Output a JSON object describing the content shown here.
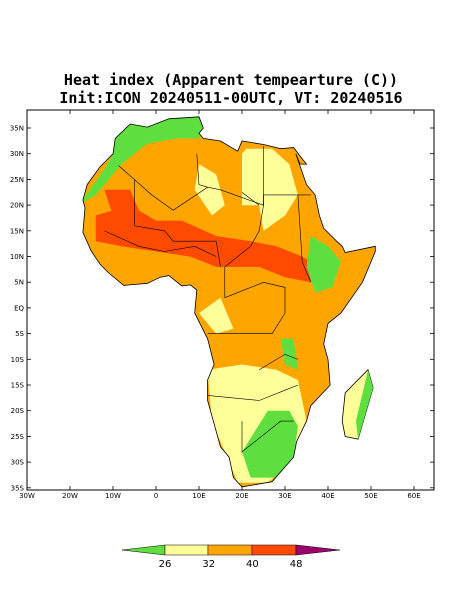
{
  "header": {
    "title": "Heat index (Apparent tempearture (C))",
    "subtitle": "Init:ICON 20240511-00UTC, VT: 20240516"
  },
  "axes": {
    "lat_labels": [
      "35N",
      "30N",
      "25N",
      "20N",
      "15N",
      "10N",
      "5N",
      "EQ",
      "5S",
      "10S",
      "15S",
      "20S",
      "25S",
      "30S",
      "35S"
    ],
    "lon_labels": [
      "30W",
      "20W",
      "10W",
      "0",
      "10E",
      "20E",
      "30E",
      "40E",
      "50E",
      "60E"
    ]
  },
  "colorbar": {
    "labels": [
      "26",
      "32",
      "40",
      "48"
    ]
  }
}
